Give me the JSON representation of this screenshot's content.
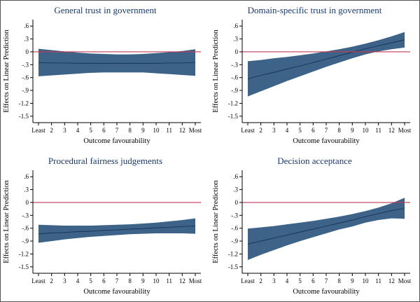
{
  "style": {
    "background": "#ffffff",
    "border_color": "#555555",
    "band_color": "#3d6488",
    "line_color": "#1c3a5e",
    "refline_color": "#c13a55",
    "title_color": "#1a3a6b",
    "axis_color": "#000000",
    "text_color": "#000000"
  },
  "chart_data": [
    {
      "type": "area",
      "title": "General trust in government",
      "xlabel": "Outcome favourability",
      "ylabel": "Effects on Linear Prediction",
      "x_tick_labels": [
        "Least",
        "2",
        "3",
        "4",
        "5",
        "6",
        "7",
        "8",
        "9",
        "10",
        "11",
        "12",
        "Most"
      ],
      "y_ticks": [
        0.6,
        0.3,
        0,
        -0.3,
        -0.6,
        -0.9,
        -1.2,
        -1.5
      ],
      "y_tick_labels": [
        ".6",
        ".3",
        "0",
        "-.3",
        "-.6",
        "-.9",
        "-1.2",
        "-1.5"
      ],
      "ylim": [
        -1.65,
        0.75
      ],
      "refline_y": 0,
      "grid": false,
      "legend": false,
      "series": [
        {
          "name": "effect",
          "values": [
            -0.25,
            -0.26,
            -0.26,
            -0.27,
            -0.27,
            -0.27,
            -0.27,
            -0.27,
            -0.27,
            -0.27,
            -0.26,
            -0.26,
            -0.25
          ]
        },
        {
          "name": "ci_upper",
          "values": [
            0.07,
            0.04,
            0.01,
            -0.02,
            -0.04,
            -0.05,
            -0.06,
            -0.06,
            -0.05,
            -0.03,
            -0.01,
            0.02,
            0.06
          ]
        },
        {
          "name": "ci_lower",
          "values": [
            -0.57,
            -0.55,
            -0.53,
            -0.51,
            -0.49,
            -0.48,
            -0.48,
            -0.48,
            -0.48,
            -0.5,
            -0.52,
            -0.54,
            -0.56
          ]
        }
      ]
    },
    {
      "type": "area",
      "title": "Domain-specific trust in government",
      "xlabel": "Outcome favourability",
      "ylabel": "Effects on Linear Prediction",
      "x_tick_labels": [
        "Least",
        "2",
        "3",
        "4",
        "5",
        "6",
        "7",
        "8",
        "9",
        "10",
        "11",
        "12",
        "Most"
      ],
      "y_ticks": [
        0.6,
        0.3,
        0,
        -0.3,
        -0.6,
        -0.9,
        -1.2,
        -1.5
      ],
      "y_tick_labels": [
        ".6",
        ".3",
        "0",
        "-.3",
        "-.6",
        "-.9",
        "-1.2",
        "-1.5"
      ],
      "ylim": [
        -1.65,
        0.75
      ],
      "refline_y": 0,
      "grid": false,
      "legend": false,
      "series": [
        {
          "name": "effect",
          "values": [
            -0.63,
            -0.55,
            -0.48,
            -0.4,
            -0.33,
            -0.25,
            -0.17,
            -0.09,
            -0.01,
            0.07,
            0.14,
            0.21,
            0.28
          ]
        },
        {
          "name": "ci_upper",
          "values": [
            -0.22,
            -0.19,
            -0.15,
            -0.12,
            -0.08,
            -0.04,
            0.01,
            0.06,
            0.12,
            0.19,
            0.27,
            0.36,
            0.46
          ]
        },
        {
          "name": "ci_lower",
          "values": [
            -1.04,
            -0.92,
            -0.8,
            -0.68,
            -0.57,
            -0.46,
            -0.35,
            -0.25,
            -0.15,
            -0.06,
            0.01,
            0.06,
            0.1
          ]
        }
      ]
    },
    {
      "type": "area",
      "title": "Procedural fairness judgements",
      "xlabel": "Outcome favourability",
      "ylabel": "Effects on Linear Prediction",
      "x_tick_labels": [
        "Least",
        "2",
        "3",
        "4",
        "5",
        "6",
        "7",
        "8",
        "9",
        "10",
        "11",
        "12",
        "Most"
      ],
      "y_ticks": [
        0.6,
        0.3,
        0,
        -0.3,
        -0.6,
        -0.9,
        -1.2,
        -1.5
      ],
      "y_tick_labels": [
        ".6",
        ".3",
        "0",
        "-.3",
        "-.6",
        "-.9",
        "-1.2",
        "-1.5"
      ],
      "ylim": [
        -1.65,
        0.75
      ],
      "refline_y": 0,
      "grid": false,
      "legend": false,
      "series": [
        {
          "name": "effect",
          "values": [
            -0.73,
            -0.71,
            -0.7,
            -0.68,
            -0.67,
            -0.65,
            -0.64,
            -0.62,
            -0.61,
            -0.59,
            -0.58,
            -0.56,
            -0.55
          ]
        },
        {
          "name": "ci_upper",
          "values": [
            -0.52,
            -0.53,
            -0.54,
            -0.54,
            -0.54,
            -0.53,
            -0.52,
            -0.51,
            -0.49,
            -0.47,
            -0.44,
            -0.41,
            -0.37
          ]
        },
        {
          "name": "ci_lower",
          "values": [
            -0.94,
            -0.9,
            -0.86,
            -0.83,
            -0.8,
            -0.78,
            -0.76,
            -0.74,
            -0.73,
            -0.72,
            -0.72,
            -0.72,
            -0.73
          ]
        }
      ]
    },
    {
      "type": "area",
      "title": "Decision acceptance",
      "xlabel": "Outcome favourability",
      "ylabel": "Effects on Linear Prediction",
      "x_tick_labels": [
        "Least",
        "2",
        "3",
        "4",
        "5",
        "6",
        "7",
        "8",
        "9",
        "10",
        "11",
        "12",
        "Most"
      ],
      "y_ticks": [
        0.6,
        0.3,
        0,
        -0.3,
        -0.6,
        -0.9,
        -1.2,
        -1.5
      ],
      "y_tick_labels": [
        ".6",
        ".3",
        "0",
        "-.3",
        "-.6",
        "-.9",
        "-1.2",
        "-1.5"
      ],
      "ylim": [
        -1.65,
        0.75
      ],
      "refline_y": 0,
      "grid": false,
      "legend": false,
      "series": [
        {
          "name": "effect",
          "values": [
            -0.97,
            -0.9,
            -0.83,
            -0.76,
            -0.69,
            -0.62,
            -0.55,
            -0.48,
            -0.41,
            -0.33,
            -0.26,
            -0.19,
            -0.14
          ]
        },
        {
          "name": "ci_upper",
          "values": [
            -0.61,
            -0.58,
            -0.55,
            -0.51,
            -0.47,
            -0.43,
            -0.38,
            -0.33,
            -0.27,
            -0.2,
            -0.12,
            -0.02,
            0.11
          ]
        },
        {
          "name": "ci_lower",
          "values": [
            -1.34,
            -1.22,
            -1.11,
            -1.0,
            -0.9,
            -0.81,
            -0.72,
            -0.63,
            -0.56,
            -0.47,
            -0.41,
            -0.37,
            -0.38
          ]
        }
      ]
    }
  ]
}
